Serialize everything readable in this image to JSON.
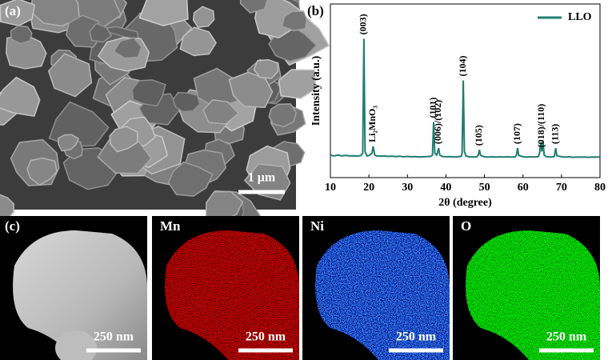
{
  "panels": {
    "a": {
      "label": "(a)",
      "scale_bar": "1 μm"
    },
    "b": {
      "label": "(b)"
    },
    "c": {
      "label": "(c)",
      "maps": [
        {
          "title": null,
          "scale_bar": "250 nm"
        },
        {
          "title": "Mn",
          "scale_bar": "250 nm"
        },
        {
          "title": "Ni",
          "scale_bar": "250 nm"
        },
        {
          "title": "O",
          "scale_bar": "250 nm"
        }
      ]
    }
  },
  "chart_data": {
    "type": "line",
    "x_label": "2θ (degree)",
    "y_label": "Intensity (a.u.)",
    "xlim": [
      10,
      80
    ],
    "xticks": [
      10,
      20,
      30,
      40,
      50,
      60,
      70,
      80
    ],
    "ylim": [
      0,
      100
    ],
    "legend": "top-right",
    "x": [
      10,
      11,
      12,
      13,
      14,
      15,
      16,
      17,
      18,
      18.4,
      18.7,
      19.0,
      19.5,
      20,
      20.8,
      21.1,
      21.5,
      22,
      23,
      24,
      25,
      26,
      27,
      28,
      29,
      30,
      31,
      32,
      33,
      34,
      35,
      36,
      36.5,
      36.8,
      37.1,
      37.6,
      38.1,
      38.4,
      39,
      40,
      41,
      42,
      43,
      44,
      44.2,
      44.5,
      44.8,
      45.2,
      46,
      47,
      48,
      48.4,
      48.7,
      49.0,
      50,
      51,
      52,
      53,
      54,
      55,
      56,
      57,
      58,
      58.3,
      58.6,
      58.9,
      60,
      61,
      62,
      63,
      64,
      64.3,
      64.6,
      64.9,
      65.2,
      65.5,
      66,
      67,
      68,
      68.2,
      68.5,
      68.8,
      70,
      71,
      72,
      73,
      74,
      75,
      76,
      77,
      78,
      79,
      80
    ],
    "series": [
      {
        "name": "LLO",
        "color": "#1f7d70",
        "values": [
          13,
          12.5,
          13,
          12.5,
          12.8,
          12.5,
          12.6,
          12.4,
          12.8,
          14,
          80,
          15,
          12.5,
          12.7,
          14,
          18,
          13,
          12.5,
          12.3,
          12.5,
          12.2,
          12.4,
          12.1,
          12.3,
          12.0,
          12.2,
          12.0,
          12.1,
          11.9,
          12.0,
          12.1,
          12.2,
          13,
          32,
          14,
          13,
          17,
          13,
          12.2,
          12.0,
          12.1,
          11.9,
          12.0,
          12.3,
          14,
          56,
          15,
          12.5,
          12.0,
          11.9,
          12.0,
          13,
          16,
          12.8,
          12.0,
          11.9,
          12.0,
          11.8,
          12.0,
          11.9,
          12.0,
          11.8,
          12.0,
          13,
          17,
          12.8,
          12.0,
          11.9,
          12.0,
          11.9,
          12.1,
          14,
          20,
          15,
          21,
          13,
          12.1,
          11.9,
          12.0,
          13,
          17,
          12.6,
          12.0,
          11.8,
          12.0,
          11.7,
          11.9,
          11.8,
          11.9,
          11.7,
          11.9,
          11.8,
          11.9
        ]
      }
    ],
    "annotations": [
      {
        "text": "(003)",
        "x": 18.7
      },
      {
        "text": "Li₂MnO₃",
        "x": 21.1
      },
      {
        "text": "(101)",
        "x": 36.8
      },
      {
        "text": "(006)/(102)",
        "x": 38.1
      },
      {
        "text": "(104)",
        "x": 44.5
      },
      {
        "text": "(105)",
        "x": 48.7
      },
      {
        "text": "(107)",
        "x": 58.6
      },
      {
        "text": "(018)/(110)",
        "x": 64.9
      },
      {
        "text": "(113)",
        "x": 68.5
      }
    ]
  }
}
